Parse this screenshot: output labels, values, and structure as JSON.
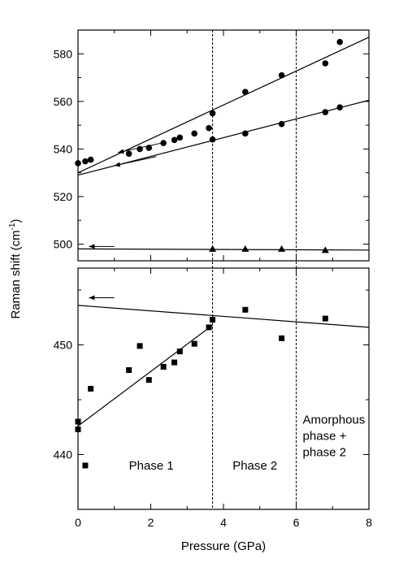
{
  "chart_data": {
    "type": "scatter",
    "xlabel": "Pressure (GPa)",
    "ylabel": "Raman shift (cm",
    "ylabel_sup": "-1",
    "ylabel_close": ")",
    "x_ticks": [
      "0",
      "2",
      "4",
      "6",
      "8"
    ],
    "xlim": [
      0,
      8
    ],
    "panels": [
      {
        "name": "top",
        "ylim": [
          493,
          590
        ],
        "y_ticks": [
          "500",
          "520",
          "540",
          "560",
          "580"
        ],
        "series": [
          {
            "marker": "circle",
            "points": [
              [
                0.0,
                534.0
              ],
              [
                0.2,
                534.8
              ],
              [
                0.35,
                535.5
              ],
              [
                1.4,
                538.0
              ],
              [
                1.7,
                540.0
              ],
              [
                1.95,
                540.5
              ],
              [
                2.35,
                542.5
              ],
              [
                2.65,
                543.8
              ],
              [
                2.8,
                544.8
              ],
              [
                3.2,
                546.5
              ],
              [
                3.6,
                548.8
              ],
              [
                3.7,
                555.0
              ],
              [
                3.7,
                544.0
              ],
              [
                4.6,
                564.0
              ],
              [
                4.6,
                546.5
              ],
              [
                5.6,
                571.0
              ],
              [
                5.6,
                550.5
              ],
              [
                6.8,
                576.0
              ],
              [
                6.8,
                555.5
              ],
              [
                7.2,
                585.0
              ],
              [
                7.2,
                557.5
              ]
            ]
          },
          {
            "marker": "triangle",
            "points": [
              [
                3.7,
                498.0
              ],
              [
                4.6,
                498.0
              ],
              [
                5.6,
                498.0
              ],
              [
                6.8,
                497.5
              ]
            ]
          }
        ],
        "fits": [
          [
            [
              0.0,
              530.0
            ],
            [
              8.0,
              587.0
            ]
          ],
          [
            [
              0.0,
              529.0
            ],
            [
              8.0,
              560.5
            ]
          ],
          [
            [
              0.0,
              498.0
            ],
            [
              8.0,
              497.5
            ]
          ]
        ],
        "arrows": [
          {
            "from": [
              2.3,
              542.5
            ],
            "to": [
              1.1,
              538.5
            ]
          },
          {
            "from": [
              2.15,
              536.8
            ],
            "to": [
              1.0,
              533.0
            ]
          },
          {
            "from": [
              1.0,
              499.0
            ],
            "to": [
              0.3,
              499.0
            ]
          }
        ]
      },
      {
        "name": "bottom",
        "ylim": [
          435,
          457
        ],
        "y_ticks": [
          "440",
          "450"
        ],
        "series": [
          {
            "marker": "square",
            "points": [
              [
                0.0,
                443.0
              ],
              [
                0.0,
                442.3
              ],
              [
                0.2,
                439.0
              ],
              [
                0.35,
                446.0
              ],
              [
                1.4,
                447.7
              ],
              [
                1.7,
                449.9
              ],
              [
                1.95,
                446.8
              ],
              [
                2.35,
                448.0
              ],
              [
                2.65,
                448.4
              ],
              [
                2.8,
                449.4
              ],
              [
                3.2,
                450.1
              ],
              [
                3.6,
                451.6
              ],
              [
                3.7,
                452.3
              ],
              [
                4.6,
                453.2
              ],
              [
                5.6,
                450.6
              ],
              [
                6.8,
                452.4
              ]
            ]
          }
        ],
        "fits": [
          [
            [
              0.0,
              442.6
            ],
            [
              3.7,
              451.8
            ]
          ],
          [
            [
              0.0,
              453.6
            ],
            [
              8.0,
              451.6
            ]
          ]
        ],
        "arrows": [
          {
            "from": [
              1.0,
              454.3
            ],
            "to": [
              0.3,
              454.3
            ]
          }
        ]
      }
    ],
    "vlines": [
      3.7,
      6.0
    ],
    "annotations": [
      {
        "text": "Phase 1",
        "x": 1.4,
        "y": 439.0,
        "lines": [
          "Phase 1"
        ]
      },
      {
        "text": "Phase 2",
        "x": 4.25,
        "y": 439.0,
        "lines": [
          "Phase 2"
        ]
      },
      {
        "text": "Amorphous phase + phase 2",
        "x": 6.18,
        "y": 443.2,
        "lines": [
          "Amorphous",
          "phase +",
          "phase 2"
        ]
      }
    ]
  }
}
